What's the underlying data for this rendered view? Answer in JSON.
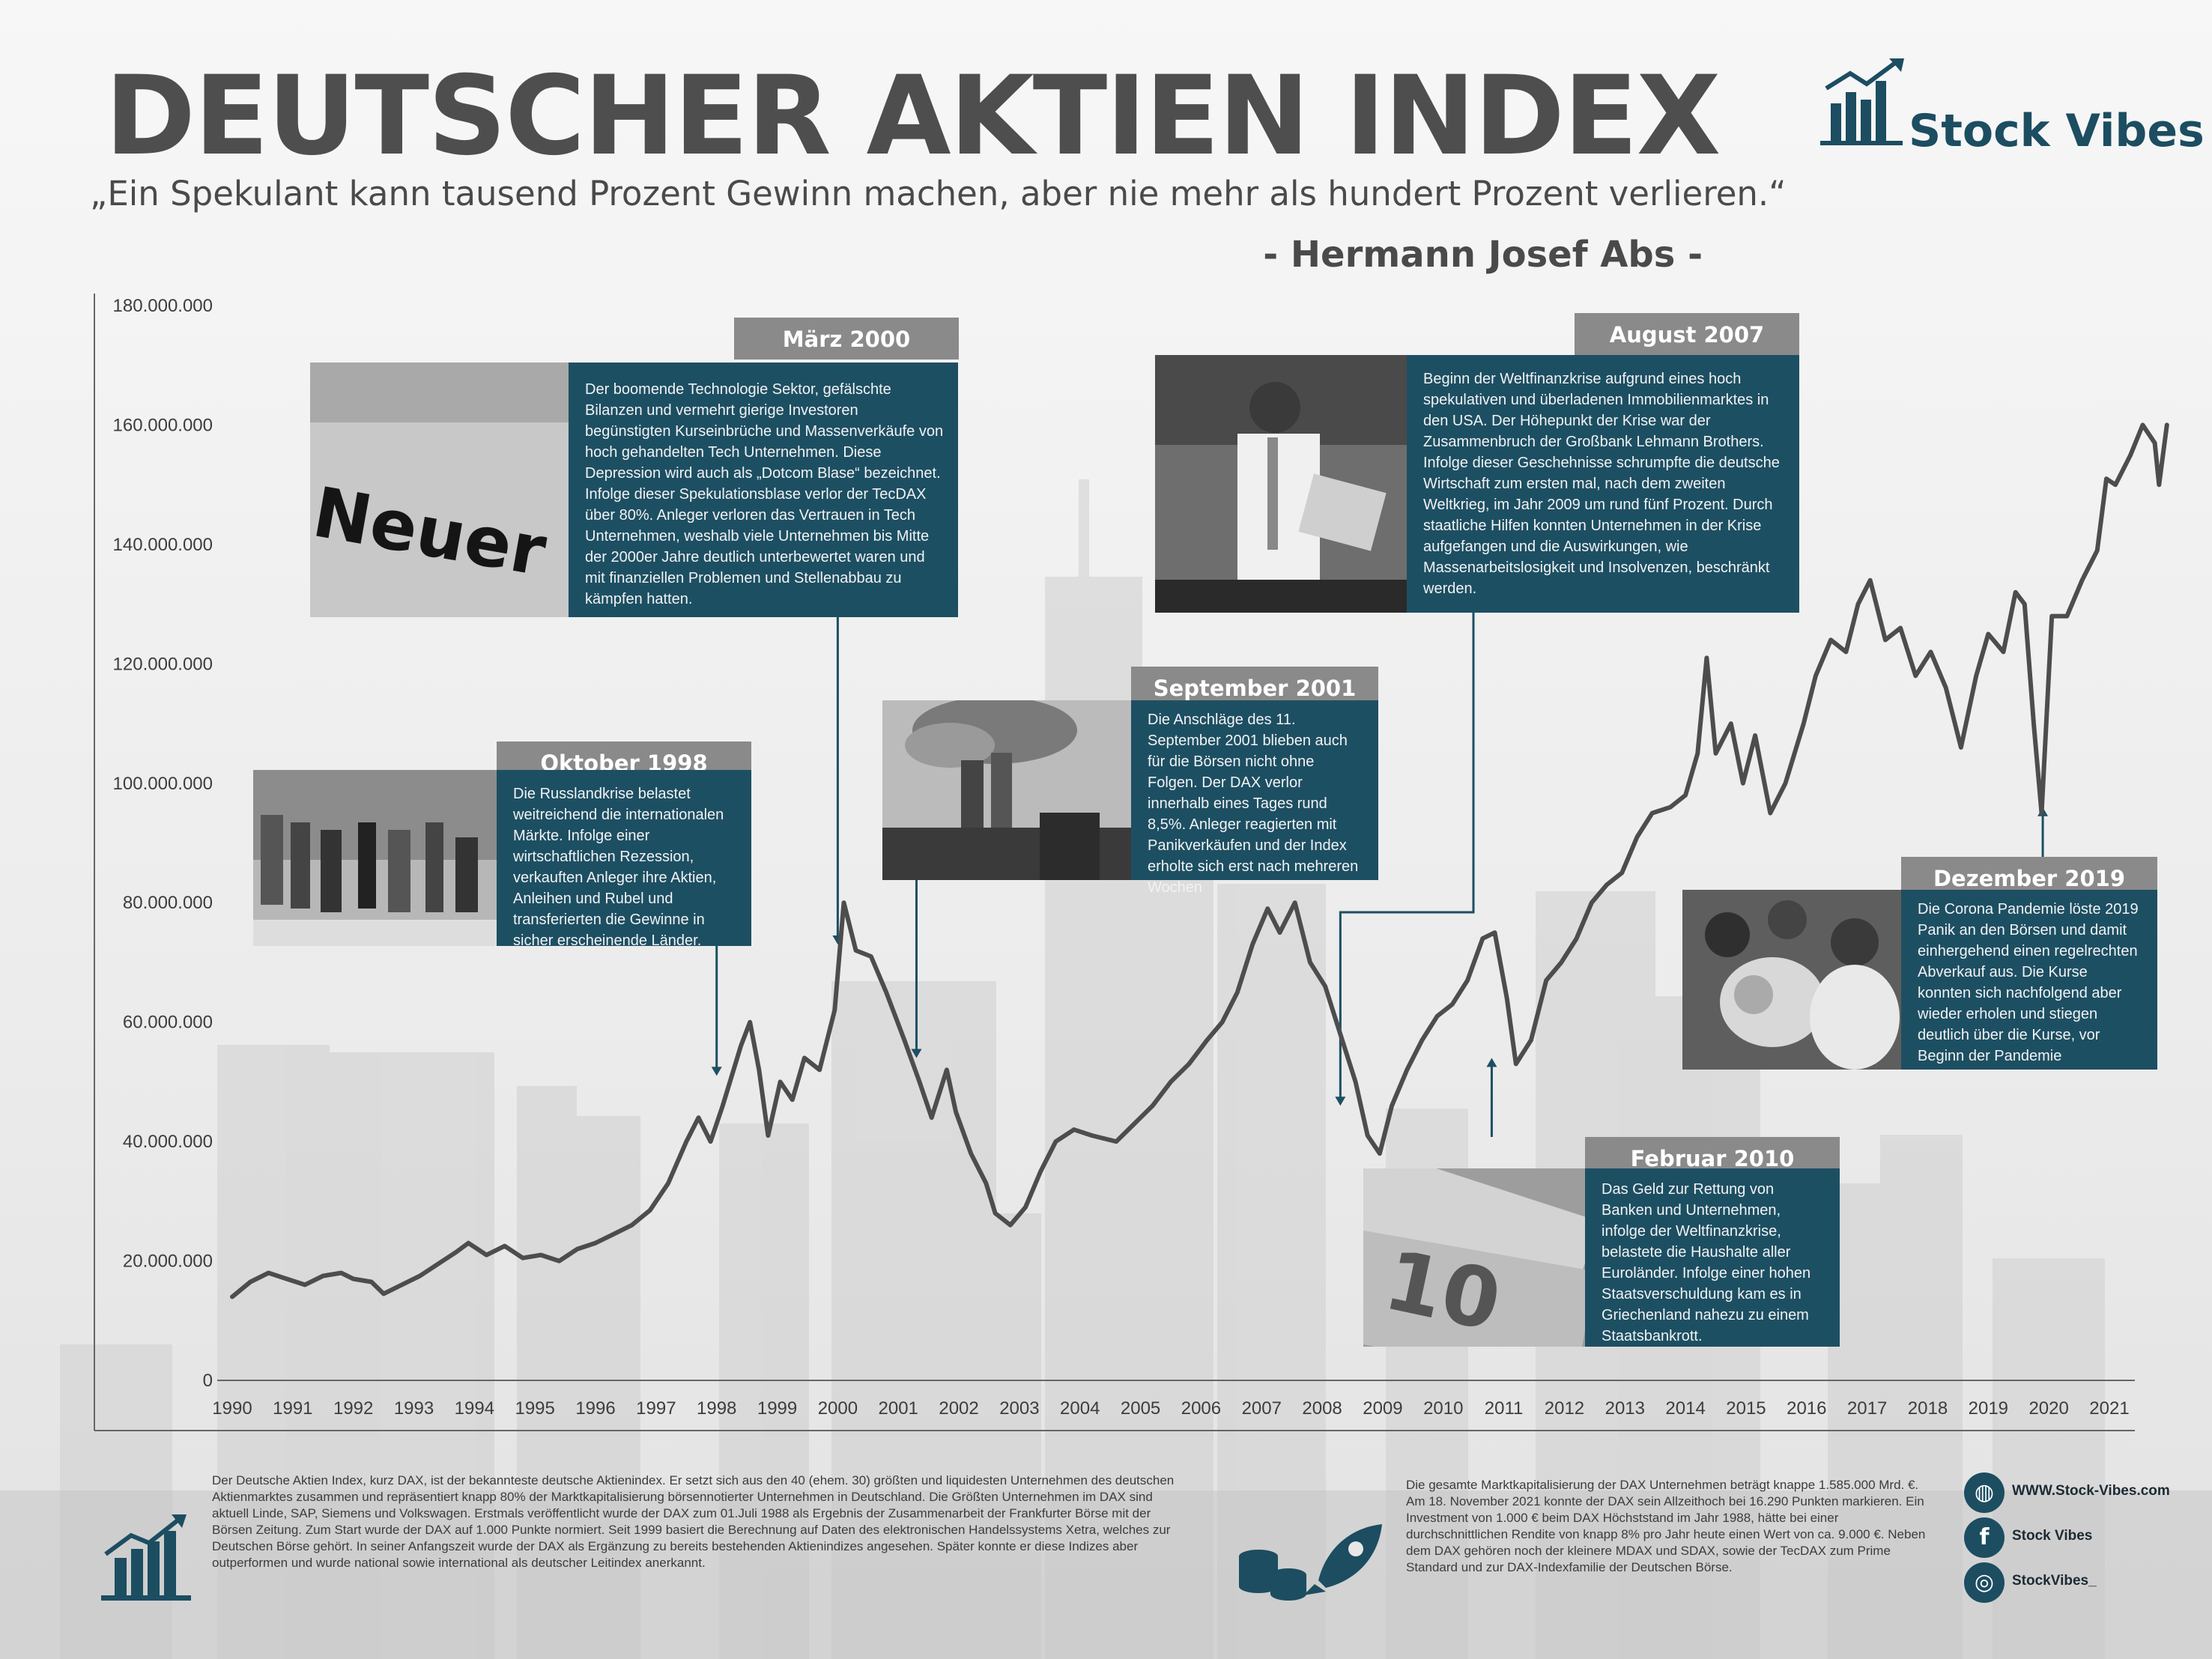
{
  "header": {
    "title": "DEUTSCHER AKTIEN INDEX",
    "quote": "„Ein Spekulant kann tausend Prozent Gewinn machen, aber nie mehr als hundert Prozent verlieren.“",
    "author": "- Hermann Josef Abs -",
    "brand": "Stock Vibes"
  },
  "colors": {
    "accent": "#1c4d61",
    "box": "#1d4f63",
    "header_box": "#8a8a8a",
    "line": "#4d4d4d"
  },
  "chart_data": {
    "type": "line",
    "title": "DEUTSCHER AKTIEN INDEX",
    "xlabel": "",
    "ylabel": "",
    "xlim": [
      1990,
      2021.0
    ],
    "ylim": [
      0,
      180000000
    ],
    "grid": false,
    "yticks": [
      0,
      20000000,
      40000000,
      60000000,
      80000000,
      100000000,
      120000000,
      140000000,
      160000000,
      180000000
    ],
    "ytick_labels": [
      "0",
      "20.000.000",
      "40.000.000",
      "60.000.000",
      "80.000.000",
      "100.000.000",
      "120.000.000",
      "140.000.000",
      "160.000.000",
      "180.000.000"
    ],
    "xticks": [
      1990,
      1991,
      1992,
      1993,
      1994,
      1995,
      1996,
      1997,
      1998,
      1999,
      2000,
      2001,
      2002,
      2003,
      2004,
      2005,
      2006,
      2007,
      2008,
      2009,
      2010,
      2011,
      2012,
      2013,
      2014,
      2015,
      2016,
      2017,
      2018,
      2019,
      2020,
      2021
    ],
    "xtick_labels": [
      "1990",
      "1991",
      "1992",
      "1993",
      "1994",
      "1995",
      "1996",
      "1997",
      "1998",
      "1999",
      "2000",
      "2001",
      "2002",
      "2003",
      "2004",
      "2005",
      "2006",
      "2007",
      "2008",
      "2009",
      "2010",
      "2011",
      "2012",
      "2013",
      "2014",
      "2015",
      "2016",
      "2017",
      "2018",
      "2019",
      "2020",
      "2021"
    ],
    "series": [
      {
        "points": [
          [
            1990.0,
            14000000
          ],
          [
            1990.3,
            16500000
          ],
          [
            1990.6,
            18000000
          ],
          [
            1990.9,
            17000000
          ],
          [
            1991.2,
            16000000
          ],
          [
            1991.5,
            17500000
          ],
          [
            1991.8,
            18000000
          ],
          [
            1992.0,
            17000000
          ],
          [
            1992.3,
            16500000
          ],
          [
            1992.5,
            14500000
          ],
          [
            1992.8,
            16000000
          ],
          [
            1993.1,
            17500000
          ],
          [
            1993.4,
            19500000
          ],
          [
            1993.7,
            21500000
          ],
          [
            1993.9,
            23000000
          ],
          [
            1994.2,
            21000000
          ],
          [
            1994.5,
            22500000
          ],
          [
            1994.8,
            20500000
          ],
          [
            1995.1,
            21000000
          ],
          [
            1995.4,
            20000000
          ],
          [
            1995.7,
            22000000
          ],
          [
            1996.0,
            23000000
          ],
          [
            1996.3,
            24500000
          ],
          [
            1996.6,
            26000000
          ],
          [
            1996.9,
            28500000
          ],
          [
            1997.2,
            33000000
          ],
          [
            1997.5,
            40000000
          ],
          [
            1997.7,
            44000000
          ],
          [
            1997.9,
            40000000
          ],
          [
            1998.1,
            46000000
          ],
          [
            1998.4,
            56000000
          ],
          [
            1998.55,
            60000000
          ],
          [
            1998.7,
            52000000
          ],
          [
            1998.85,
            41000000
          ],
          [
            1999.05,
            50000000
          ],
          [
            1999.25,
            47000000
          ],
          [
            1999.45,
            54000000
          ],
          [
            1999.7,
            52000000
          ],
          [
            1999.95,
            62000000
          ],
          [
            2000.1,
            80000000
          ],
          [
            2000.3,
            72000000
          ],
          [
            2000.55,
            71000000
          ],
          [
            2000.8,
            65000000
          ],
          [
            2001.1,
            57000000
          ],
          [
            2001.35,
            50000000
          ],
          [
            2001.55,
            44000000
          ],
          [
            2001.8,
            52000000
          ],
          [
            2001.95,
            45000000
          ],
          [
            2002.2,
            38000000
          ],
          [
            2002.45,
            33000000
          ],
          [
            2002.6,
            28000000
          ],
          [
            2002.85,
            26000000
          ],
          [
            2003.1,
            29000000
          ],
          [
            2003.35,
            35000000
          ],
          [
            2003.6,
            40000000
          ],
          [
            2003.9,
            42000000
          ],
          [
            2004.2,
            41000000
          ],
          [
            2004.6,
            40000000
          ],
          [
            2004.9,
            43000000
          ],
          [
            2005.2,
            46000000
          ],
          [
            2005.5,
            50000000
          ],
          [
            2005.8,
            53000000
          ],
          [
            2006.1,
            57000000
          ],
          [
            2006.35,
            60000000
          ],
          [
            2006.6,
            65000000
          ],
          [
            2006.85,
            73000000
          ],
          [
            2007.1,
            79000000
          ],
          [
            2007.3,
            75000000
          ],
          [
            2007.55,
            80000000
          ],
          [
            2007.8,
            70000000
          ],
          [
            2008.05,
            66000000
          ],
          [
            2008.3,
            58000000
          ],
          [
            2008.55,
            50000000
          ],
          [
            2008.75,
            41000000
          ],
          [
            2008.95,
            38000000
          ],
          [
            2009.15,
            46000000
          ],
          [
            2009.4,
            52000000
          ],
          [
            2009.65,
            57000000
          ],
          [
            2009.9,
            61000000
          ],
          [
            2010.15,
            63000000
          ],
          [
            2010.4,
            67000000
          ],
          [
            2010.65,
            74000000
          ],
          [
            2010.85,
            75000000
          ],
          [
            2011.05,
            64000000
          ],
          [
            2011.2,
            53000000
          ],
          [
            2011.45,
            57000000
          ],
          [
            2011.7,
            67000000
          ],
          [
            2011.95,
            70000000
          ],
          [
            2012.2,
            74000000
          ],
          [
            2012.45,
            80000000
          ],
          [
            2012.7,
            83000000
          ],
          [
            2012.95,
            85000000
          ],
          [
            2013.2,
            91000000
          ],
          [
            2013.45,
            95000000
          ],
          [
            2013.75,
            96000000
          ],
          [
            2014.0,
            98000000
          ],
          [
            2014.2,
            105000000
          ],
          [
            2014.35,
            121000000
          ],
          [
            2014.5,
            105000000
          ],
          [
            2014.75,
            110000000
          ],
          [
            2014.95,
            100000000
          ],
          [
            2015.15,
            108000000
          ],
          [
            2015.4,
            95000000
          ],
          [
            2015.65,
            100000000
          ],
          [
            2015.95,
            110000000
          ],
          [
            2016.15,
            118000000
          ],
          [
            2016.4,
            124000000
          ],
          [
            2016.65,
            122000000
          ],
          [
            2016.85,
            130000000
          ],
          [
            2017.05,
            134000000
          ],
          [
            2017.3,
            124000000
          ],
          [
            2017.55,
            126000000
          ],
          [
            2017.8,
            118000000
          ],
          [
            2018.05,
            122000000
          ],
          [
            2018.3,
            116000000
          ],
          [
            2018.55,
            106000000
          ],
          [
            2018.8,
            118000000
          ],
          [
            2019.0,
            125000000
          ],
          [
            2019.25,
            122000000
          ],
          [
            2019.45,
            132000000
          ],
          [
            2019.6,
            130000000
          ],
          [
            2019.75,
            110000000
          ],
          [
            2019.88,
            95000000
          ],
          [
            2020.05,
            128000000
          ],
          [
            2020.3,
            128000000
          ],
          [
            2020.55,
            134000000
          ],
          [
            2020.8,
            139000000
          ],
          [
            2020.95,
            151000000
          ],
          [
            2021.1,
            150000000
          ],
          [
            2021.35,
            155000000
          ],
          [
            2021.55,
            160000000
          ],
          [
            2021.75,
            157000000
          ],
          [
            2021.82,
            150000000
          ],
          [
            2021.95,
            160000000
          ]
        ]
      }
    ]
  },
  "events": [
    {
      "title": "Oktober 1998",
      "year": 1998.0,
      "value": 50000000,
      "text": "Die Russlandkrise belastet weitreichend die internationalen Märkte. Infolge einer wirtschaftlichen Rezession, verkauften Anleger ihre Aktien, Anleihen und Rubel und transferierten die Gewinne in sicher erscheinende Länder.",
      "photo": "market-stalls-photo"
    },
    {
      "title": "März 2000",
      "year": 2000.0,
      "value": 72000000,
      "text": "Der boomende Technologie Sektor, gefälschte Bilanzen und vermehrt gierige Investoren begünstigten Kurseinbrüche und Massenverkäufe von hoch gehandelten Tech Unternehmen. Diese Depression wird auch als „Dotcom Blase“ bezeichnet. Infolge dieser Spekulationsblase verlor der TecDAX über 80%. Anleger verloren das Vertrauen in Tech Unternehmen, weshalb viele Unternehmen bis Mitte der 2000er Jahre deutlich unterbewertet waren und mit finanziellen Problemen und Stellenabbau zu kämpfen hatten.",
      "photo": "neuer-markt-photo",
      "photo_text": "Neuer Markt"
    },
    {
      "title": "September 2001",
      "year": 2001.3,
      "value": 53000000,
      "text": "Die Anschläge des 11. September 2001 blieben auch für die Börsen nicht ohne Folgen. Der DAX verlor innerhalb eines Tages rund 8,5%. Anleger reagierten mit Panikverkäufen und der Index erholte sich erst nach mehreren Wochen",
      "photo": "world-trade-center-photo"
    },
    {
      "title": "August 2007",
      "year": 2008.3,
      "value": 45000000,
      "text": "Beginn der Weltfinanzkrise aufgrund eines hoch spekulativen und überladenen Immobilienmarktes in den USA. Der Höhepunkt der Krise war der Zusammenbruch der Großbank Lehmann Brothers. Infolge dieser Geschehnisse schrumpfte die deutsche Wirtschaft zum ersten mal, nach dem zweiten Weltkrieg, im Jahr 2009 um rund fünf Prozent. Durch staatliche Hilfen konnten Unternehmen in der Krise aufgefangen und die Auswirkungen, wie Massenarbeitslosigkeit und Insolvenzen, beschränkt werden.",
      "photo": "lehman-employee-photo"
    },
    {
      "title": "Februar 2010",
      "year": 2010.8,
      "value": 55000000,
      "text": "Das Geld zur Rettung von Banken und Unternehmen, infolge der Weltfinanzkrise, belastete die Haushalte aller Euroländer. Infolge einer hohen Staatsverschuldung kam es in Griechenland nahezu zu einem Staatsbankrott.",
      "photo": "euro-banknotes-photo"
    },
    {
      "title": "Dezember 2019",
      "year": 2019.9,
      "value": 97000000,
      "text": "Die Corona Pandemie löste 2019 Panik an den Börsen und damit einhergehend einen regelrechten Abverkauf aus. Die Kurse konnten sich nachfolgend aber wieder erholen und stiegen deutlich über die Kurse, vor Beginn der Pandemie",
      "photo": "pandemic-crowd-photo"
    }
  ],
  "footer": {
    "left_text": "Der Deutsche Aktien Index, kurz DAX, ist der bekannteste deutsche Aktienindex. Er setzt sich aus den 40 (ehem. 30) größten und liquidesten Unternehmen des deutschen Aktienmarktes zusammen und repräsentiert knapp 80% der Marktkapitalisierung börsennotierter Unternehmen in Deutschland. Die Größten Unternehmen im DAX sind aktuell Linde, SAP, Siemens und Volkswagen. Erstmals veröffentlicht wurde der DAX zum 01.Juli 1988 als Ergebnis der Zusammenarbeit der Frankfurter Börse mit der Börsen Zeitung. Zum Start wurde der DAX auf 1.000 Punkte normiert. Seit 1999 basiert die Berechnung auf Daten des elektronischen Handelssystems Xetra, welches zur Deutschen Börse gehört. In seiner Anfangszeit wurde der DAX als Ergänzung zu bereits bestehenden Aktienindizes angesehen. Später konnte er diese Indizes aber outperformen und wurde national sowie international als deutscher Leitindex  anerkannt.",
    "right_text": "Die gesamte Marktkapitalisierung der DAX Unternehmen beträgt knappe 1.585.000 Mrd. €. Am 18. November 2021 konnte der DAX sein Allzeithoch bei 16.290 Punkten markieren. Ein Investment von 1.000 € beim DAX Höchststand im Jahr 1988, hätte bei einer durchschnittlichen Rendite von knapp 8% pro Jahr heute einen Wert von ca. 9.000 €. Neben dem DAX gehören noch der kleinere MDAX und SDAX, sowie der TecDAX zum Prime Standard und zur DAX-Indexfamilie der Deutschen Börse.",
    "social": [
      {
        "icon": "globe-icon",
        "label": "WWW.Stock-Vibes.com"
      },
      {
        "icon": "facebook-icon",
        "label": "Stock Vibes"
      },
      {
        "icon": "instagram-icon",
        "label": "StockVibes_"
      }
    ]
  }
}
